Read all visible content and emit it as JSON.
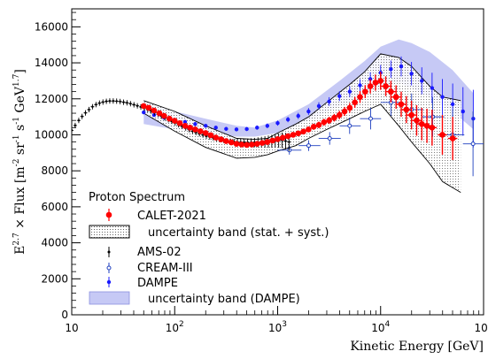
{
  "chart_data": {
    "type": "scatter",
    "title": "",
    "xlabel": "Kinetic Energy [GeV]",
    "ylabel": "E^{2.7} × Flux [m^{-2} sr^{-1} s^{-1} GeV^{1.7}]",
    "ylabel_parts": {
      "main": "E",
      "exp": "2.7",
      "mid": " × Flux [m",
      "e1": "-2",
      "s1": " sr",
      "e2": "-1",
      "s2": " s",
      "e3": "-1",
      "s3": " GeV",
      "e4": "1.7",
      "end": "]"
    },
    "x_scale": "log",
    "xlim": [
      10,
      100000
    ],
    "ylim": [
      0,
      17000
    ],
    "x_ticks": [
      {
        "value": 10,
        "base": "10",
        "exp": ""
      },
      {
        "value": 100,
        "base": "10",
        "exp": "2"
      },
      {
        "value": 1000,
        "base": "10",
        "exp": "3"
      },
      {
        "value": 10000,
        "base": "10",
        "exp": "4"
      },
      {
        "value": 100000,
        "base": "10",
        "exp": "5"
      }
    ],
    "y_ticks": [
      0,
      2000,
      4000,
      6000,
      8000,
      10000,
      12000,
      14000,
      16000
    ],
    "legend": {
      "title": "Proton Spectrum",
      "placement": "bottom-left",
      "entries": [
        {
          "label": "CALET-2021",
          "kind": "red-marker"
        },
        {
          "label": "uncertainty band (stat. + syst.)",
          "kind": "dotted-box"
        },
        {
          "label": "AMS-02",
          "kind": "black-marker"
        },
        {
          "label": "CREAM-III",
          "kind": "open-blue-marker"
        },
        {
          "label": "DAMPE",
          "kind": "blue-marker"
        },
        {
          "label": "uncertainty band (DAMPE)",
          "kind": "blue-box"
        }
      ]
    },
    "colors": {
      "calet": "#ff0000",
      "ams": "#000000",
      "cream": "#1f3fbf",
      "dampe": "#1a1aff",
      "dampe_band": "#c6c9f5",
      "band_edge": "#000000"
    },
    "series": [
      {
        "name": "CALET-2021",
        "x": [
          50,
          56,
          63,
          71,
          79,
          89,
          100,
          112,
          126,
          141,
          158,
          178,
          200,
          224,
          251,
          282,
          316,
          355,
          398,
          447,
          501,
          562,
          631,
          708,
          794,
          891,
          1000,
          1122,
          1259,
          1413,
          1585,
          1778,
          1995,
          2239,
          2512,
          2818,
          3162,
          3548,
          3981,
          4467,
          5012,
          5623,
          6310,
          7079,
          7943,
          8913,
          10000,
          11220,
          12589,
          14125,
          15849,
          17783,
          19953,
          22387,
          25119,
          28184,
          31623,
          39811,
          50119
        ],
        "y": [
          11600,
          11500,
          11350,
          11200,
          11050,
          10900,
          10780,
          10650,
          10500,
          10400,
          10300,
          10200,
          10100,
          9980,
          9850,
          9750,
          9650,
          9580,
          9500,
          9460,
          9440,
          9460,
          9500,
          9550,
          9600,
          9680,
          9760,
          9840,
          9920,
          10000,
          10080,
          10180,
          10300,
          10450,
          10550,
          10700,
          10800,
          10950,
          11100,
          11300,
          11500,
          11800,
          12100,
          12400,
          12700,
          12900,
          13000,
          12700,
          12400,
          12100,
          11700,
          11400,
          11100,
          10800,
          10600,
          10500,
          10400,
          10000,
          9800
        ],
        "yerr": [
          100,
          100,
          100,
          100,
          100,
          100,
          100,
          100,
          100,
          100,
          100,
          100,
          100,
          100,
          100,
          100,
          100,
          100,
          100,
          100,
          100,
          100,
          100,
          100,
          100,
          100,
          100,
          110,
          120,
          130,
          140,
          150,
          160,
          170,
          180,
          190,
          200,
          210,
          230,
          250,
          270,
          300,
          330,
          360,
          400,
          450,
          500,
          550,
          600,
          650,
          700,
          750,
          800,
          850,
          900,
          950,
          1000,
          1100,
          1200
        ]
      },
      {
        "name": "AMS-02",
        "x": [
          10,
          10.8,
          11.7,
          12.6,
          13.6,
          14.7,
          15.9,
          17.2,
          18.6,
          20.1,
          21.7,
          23.4,
          25.3,
          27.3,
          29.5,
          31.9,
          34.4,
          37.2,
          40.2,
          43.4,
          46.9,
          50.6,
          54.7,
          59.1,
          63.8,
          68.9,
          74.4,
          80.4,
          86.8,
          93.8,
          101,
          109,
          118,
          128,
          138,
          149,
          161,
          174,
          188,
          203,
          219,
          237,
          256,
          276,
          298,
          322,
          348,
          376,
          406,
          438,
          473,
          511,
          552,
          596,
          644,
          696,
          752,
          812,
          877,
          947,
          1023,
          1105,
          1194,
          1289
        ],
        "y": [
          10250,
          10520,
          10800,
          11020,
          11220,
          11400,
          11560,
          11680,
          11760,
          11820,
          11860,
          11880,
          11880,
          11870,
          11850,
          11810,
          11780,
          11730,
          11670,
          11610,
          11550,
          11480,
          11400,
          11320,
          11230,
          11140,
          11040,
          10940,
          10840,
          10750,
          10660,
          10560,
          10470,
          10380,
          10290,
          10200,
          10130,
          10060,
          9990,
          9930,
          9880,
          9830,
          9780,
          9740,
          9700,
          9660,
          9640,
          9620,
          9600,
          9590,
          9580,
          9570,
          9570,
          9570,
          9580,
          9590,
          9600,
          9620,
          9640,
          9660,
          9680,
          9700,
          9650,
          9600
        ],
        "yerr": [
          60,
          60,
          60,
          60,
          60,
          60,
          60,
          60,
          60,
          60,
          60,
          60,
          60,
          60,
          60,
          60,
          60,
          60,
          60,
          60,
          60,
          60,
          60,
          60,
          60,
          60,
          60,
          60,
          60,
          60,
          60,
          70,
          70,
          70,
          70,
          80,
          80,
          80,
          90,
          90,
          100,
          100,
          110,
          120,
          130,
          140,
          150,
          160,
          170,
          180,
          200,
          220,
          240,
          260,
          280,
          300,
          320,
          340,
          360,
          380,
          400,
          430,
          460,
          500
        ]
      },
      {
        "name": "CREAM-III",
        "x": [
          1300,
          2000,
          3200,
          5000,
          8000,
          12600,
          20000,
          32000,
          50000,
          79000
        ],
        "y": [
          9150,
          9400,
          9800,
          10500,
          10900,
          11800,
          11400,
          11000,
          10000,
          9500
        ],
        "yerr": [
          250,
          300,
          350,
          450,
          600,
          750,
          900,
          1100,
          1400,
          1800
        ],
        "xerr_lo": [
          300,
          400,
          700,
          1000,
          1700,
          2600,
          4000,
          6500,
          10000,
          16000
        ],
        "xerr_hi": [
          400,
          600,
          900,
          1400,
          2100,
          3400,
          6000,
          9500,
          15000,
          21000
        ]
      },
      {
        "name": "DAMPE",
        "x": [
          50,
          63,
          79,
          100,
          126,
          158,
          200,
          251,
          316,
          398,
          501,
          631,
          794,
          1000,
          1259,
          1585,
          1995,
          2512,
          3162,
          3981,
          5012,
          6310,
          7943,
          10000,
          12589,
          15849,
          19953,
          25119,
          31623,
          39811,
          50119,
          63096,
          79433
        ],
        "y": [
          11250,
          11100,
          10950,
          10820,
          10720,
          10600,
          10500,
          10400,
          10330,
          10300,
          10320,
          10400,
          10500,
          10650,
          10850,
          11050,
          11300,
          11600,
          11850,
          12150,
          12400,
          12750,
          13100,
          13450,
          13650,
          13800,
          13400,
          13000,
          12600,
          12100,
          11700,
          11300,
          10900
        ],
        "yerr": [
          100,
          100,
          100,
          100,
          100,
          100,
          100,
          100,
          100,
          100,
          110,
          120,
          130,
          140,
          150,
          170,
          190,
          210,
          240,
          270,
          300,
          340,
          380,
          430,
          480,
          550,
          650,
          750,
          850,
          1000,
          1150,
          1350,
          1600
        ]
      }
    ],
    "calet_band": {
      "x": [
        50,
        100,
        200,
        400,
        600,
        800,
        1000,
        1500,
        2000,
        3000,
        5000,
        7000,
        10000,
        15000,
        20000,
        30000,
        40000,
        60000
      ],
      "upper": [
        11900,
        11300,
        10500,
        9800,
        9750,
        9800,
        10100,
        10600,
        11000,
        11800,
        12800,
        13500,
        14500,
        14300,
        13800,
        12700,
        12100,
        11900
      ],
      "lower": [
        11200,
        10200,
        9300,
        8700,
        8750,
        8900,
        9100,
        9400,
        9800,
        10300,
        10900,
        11300,
        11700,
        10500,
        9600,
        8400,
        7400,
        6800
      ]
    },
    "dampe_band": {
      "x": [
        50,
        100,
        200,
        400,
        600,
        1000,
        2000,
        4000,
        7000,
        10000,
        15000,
        20000,
        30000,
        50000,
        80000
      ],
      "upper": [
        11900,
        11300,
        10900,
        10500,
        10400,
        10800,
        11700,
        13000,
        14100,
        14900,
        15300,
        15100,
        14600,
        13600,
        12300
      ],
      "lower": [
        10600,
        10300,
        10100,
        9900,
        9900,
        10100,
        10800,
        11600,
        12200,
        12700,
        12900,
        12600,
        12100,
        11300,
        10300
      ]
    }
  }
}
